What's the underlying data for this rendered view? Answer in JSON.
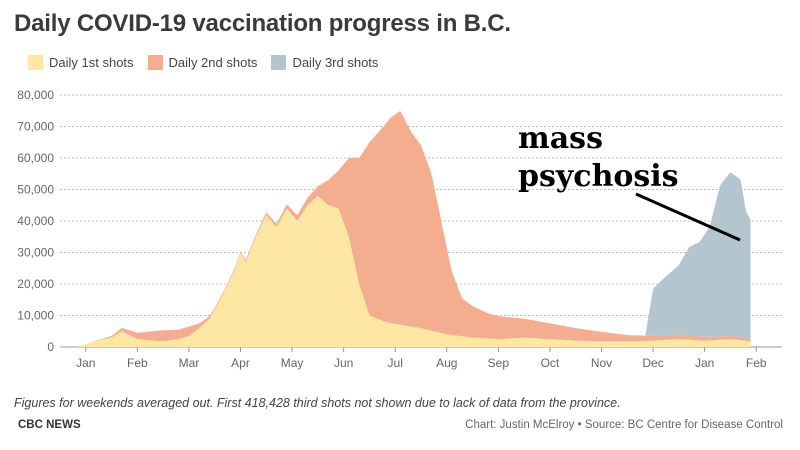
{
  "header": {
    "title": "Daily COVID-19 vaccination progress in B.C."
  },
  "legend": [
    {
      "label": "Daily 1st shots",
      "color": "#fde7a2"
    },
    {
      "label": "Daily 2nd shots",
      "color": "#f5ad8f"
    },
    {
      "label": "Daily 3rd shots",
      "color": "#b3c5ce"
    }
  ],
  "annotation": {
    "line1": "mass",
    "line2": "psychosis"
  },
  "footer": {
    "note": "Figures for weekends averaged out. First 418,428 third shots not shown due to lack of data from the province.",
    "brand": "CBC NEWS",
    "credit": "Chart: Justin McElroy • Source: BC Centre for Disease Control"
  },
  "chart_data": {
    "type": "area",
    "stacked": true,
    "title": "Daily COVID-19 vaccination progress in B.C.",
    "xlabel": "",
    "ylabel": "",
    "ylim": [
      0,
      80000
    ],
    "yticks": [
      0,
      10000,
      20000,
      30000,
      40000,
      50000,
      60000,
      70000,
      80000
    ],
    "ytick_labels": [
      "0",
      "10,000",
      "20,000",
      "30,000",
      "40,000",
      "50,000",
      "60,000",
      "70,000",
      "80,000"
    ],
    "x_labels": [
      "Jan",
      "Feb",
      "Mar",
      "Apr",
      "May",
      "Jun",
      "Jul",
      "Aug",
      "Sep",
      "Oct",
      "Nov",
      "Dec",
      "Jan",
      "Feb"
    ],
    "x_label_positions": [
      0.5,
      1.5,
      2.5,
      3.5,
      4.5,
      5.5,
      6.5,
      7.5,
      8.5,
      9.5,
      10.5,
      11.5,
      12.5,
      13.5
    ],
    "x_unit": "month index from Dec 2020",
    "grid": "horizontal dashed",
    "legend_position": "top-left",
    "series": [
      {
        "name": "Daily 1st shots",
        "color": "#fde7a2",
        "points": [
          [
            0.35,
            0
          ],
          [
            0.6,
            1500
          ],
          [
            1.0,
            3000
          ],
          [
            1.2,
            5000
          ],
          [
            1.5,
            2500
          ],
          [
            1.8,
            2000
          ],
          [
            2.0,
            1800
          ],
          [
            2.3,
            2500
          ],
          [
            2.5,
            3500
          ],
          [
            2.7,
            6000
          ],
          [
            2.9,
            9000
          ],
          [
            3.0,
            12000
          ],
          [
            3.2,
            18000
          ],
          [
            3.4,
            25000
          ],
          [
            3.5,
            30000
          ],
          [
            3.6,
            27000
          ],
          [
            3.8,
            35000
          ],
          [
            4.0,
            42000
          ],
          [
            4.2,
            38000
          ],
          [
            4.4,
            44000
          ],
          [
            4.6,
            40000
          ],
          [
            4.8,
            45000
          ],
          [
            5.0,
            48000
          ],
          [
            5.2,
            45000
          ],
          [
            5.4,
            44000
          ],
          [
            5.6,
            35000
          ],
          [
            5.8,
            20000
          ],
          [
            6.0,
            10000
          ],
          [
            6.3,
            8000
          ],
          [
            6.6,
            7000
          ],
          [
            7.0,
            6000
          ],
          [
            7.5,
            4000
          ],
          [
            8.0,
            3000
          ],
          [
            8.5,
            2500
          ],
          [
            9.0,
            3000
          ],
          [
            9.5,
            2500
          ],
          [
            10.0,
            2000
          ],
          [
            10.5,
            1800
          ],
          [
            11.0,
            1800
          ],
          [
            11.5,
            2000
          ],
          [
            12.0,
            2500
          ],
          [
            12.5,
            2000
          ],
          [
            13.0,
            2500
          ],
          [
            13.3,
            2000
          ],
          [
            13.4,
            1500
          ]
        ]
      },
      {
        "name": "Daily 2nd shots",
        "color": "#f5ad8f",
        "points": [
          [
            0.35,
            0
          ],
          [
            0.6,
            0
          ],
          [
            1.0,
            500
          ],
          [
            1.5,
            2000
          ],
          [
            1.8,
            3000
          ],
          [
            2.0,
            3500
          ],
          [
            2.3,
            3000
          ],
          [
            2.5,
            3000
          ],
          [
            2.7,
            1500
          ],
          [
            2.9,
            800
          ],
          [
            3.0,
            500
          ],
          [
            3.5,
            500
          ],
          [
            4.0,
            800
          ],
          [
            4.5,
            1500
          ],
          [
            5.0,
            3000
          ],
          [
            5.2,
            8000
          ],
          [
            5.4,
            12000
          ],
          [
            5.6,
            25000
          ],
          [
            5.8,
            40000
          ],
          [
            6.0,
            55000
          ],
          [
            6.2,
            60000
          ],
          [
            6.4,
            65000
          ],
          [
            6.6,
            68000
          ],
          [
            6.8,
            62000
          ],
          [
            7.0,
            58000
          ],
          [
            7.2,
            50000
          ],
          [
            7.4,
            35000
          ],
          [
            7.6,
            20000
          ],
          [
            7.8,
            12000
          ],
          [
            8.0,
            10000
          ],
          [
            8.3,
            8000
          ],
          [
            8.6,
            7000
          ],
          [
            9.0,
            6000
          ],
          [
            9.5,
            5000
          ],
          [
            10.0,
            4000
          ],
          [
            10.5,
            3000
          ],
          [
            11.0,
            2000
          ],
          [
            11.5,
            1500
          ],
          [
            12.0,
            1500
          ],
          [
            12.5,
            1200
          ],
          [
            13.0,
            1000
          ],
          [
            13.3,
            1000
          ],
          [
            13.4,
            800
          ]
        ]
      },
      {
        "name": "Daily 3rd shots",
        "color": "#b3c5ce",
        "points": [
          [
            0.35,
            0
          ],
          [
            10.0,
            0
          ],
          [
            11.2,
            0
          ],
          [
            11.35,
            0
          ],
          [
            11.5,
            15000
          ],
          [
            11.7,
            18000
          ],
          [
            12.0,
            22000
          ],
          [
            12.2,
            28000
          ],
          [
            12.4,
            30000
          ],
          [
            12.6,
            35000
          ],
          [
            12.8,
            48000
          ],
          [
            13.0,
            52000
          ],
          [
            13.2,
            50000
          ],
          [
            13.3,
            40000
          ],
          [
            13.4,
            38000
          ]
        ]
      }
    ]
  }
}
